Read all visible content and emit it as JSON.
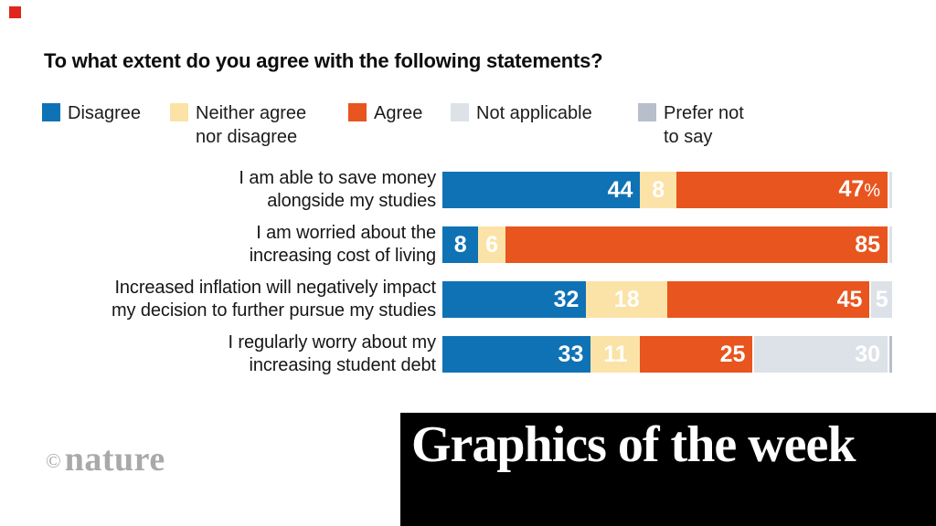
{
  "brand": {
    "red_square_color": "#e0251c"
  },
  "header": {
    "title": "To what extent do you agree with the following statements?"
  },
  "legend": {
    "items": [
      {
        "key": "disagree",
        "label": "Disagree",
        "color": "#0F72B5"
      },
      {
        "key": "neither",
        "label": "Neither agree\nnor disagree",
        "color": "#FBE3A7"
      },
      {
        "key": "agree",
        "label": "Agree",
        "color": "#E8551E"
      },
      {
        "key": "not-applicable",
        "label": "Not applicable",
        "color": "#DDE2E8"
      },
      {
        "key": "prefer-not-to-say",
        "label": "Prefer not\nto say",
        "color": "#B6BFCA"
      }
    ]
  },
  "chart_data": {
    "type": "bar",
    "orientation": "horizontal",
    "stacked": true,
    "unit": "percent",
    "xlim": [
      0,
      100
    ],
    "grid": false,
    "legend_position": "top",
    "title": "To what extent do you agree with the following statements?",
    "categories": [
      "I am able to save money alongside my studies",
      "I am worried about the increasing cost of living",
      "Increased inflation will negatively impact my decision to further pursue my studies",
      "I regularly worry about my increasing student debt"
    ],
    "series": [
      {
        "key": "disagree",
        "name": "Disagree",
        "values": [
          44,
          8,
          32,
          33
        ]
      },
      {
        "key": "neither",
        "name": "Neither agree nor disagree",
        "values": [
          8,
          6,
          18,
          11
        ]
      },
      {
        "key": "agree",
        "name": "Agree",
        "values": [
          47,
          85,
          45,
          25
        ]
      },
      {
        "key": "not-applicable",
        "name": "Not applicable",
        "values": [
          1,
          1,
          5,
          30
        ]
      },
      {
        "key": "prefer-not-to-say",
        "name": "Prefer not to say",
        "values": [
          0,
          0,
          0,
          1
        ]
      }
    ],
    "colors": {
      "disagree": "#0F72B5",
      "neither": "#FBE3A7",
      "agree": "#E8551E",
      "not-applicable": "#DDE2E8",
      "prefer-not-to-say": "#B6BFCA"
    },
    "rows": [
      {
        "label_lines": [
          "I am able to save money",
          "alongside my studies"
        ],
        "segments": [
          {
            "series": "disagree",
            "value": 44,
            "text": "44"
          },
          {
            "series": "neither",
            "value": 8,
            "text": "8"
          },
          {
            "series": "agree",
            "value": 47,
            "text": "47%"
          },
          {
            "series": "not-applicable",
            "value": 1,
            "text": ""
          }
        ]
      },
      {
        "label_lines": [
          "I am worried about the",
          "increasing cost of living"
        ],
        "segments": [
          {
            "series": "disagree",
            "value": 8,
            "text": "8"
          },
          {
            "series": "neither",
            "value": 6,
            "text": "6"
          },
          {
            "series": "agree",
            "value": 85,
            "text": "85"
          },
          {
            "series": "not-applicable",
            "value": 1,
            "text": ""
          }
        ]
      },
      {
        "label_lines": [
          "Increased inflation will negatively impact",
          "my decision to further pursue my studies"
        ],
        "segments": [
          {
            "series": "disagree",
            "value": 32,
            "text": "32"
          },
          {
            "series": "neither",
            "value": 18,
            "text": "18"
          },
          {
            "series": "agree",
            "value": 45,
            "text": "45"
          },
          {
            "series": "not-applicable",
            "value": 5,
            "text": "5"
          }
        ]
      },
      {
        "label_lines": [
          "I regularly worry about my",
          "increasing student debt"
        ],
        "segments": [
          {
            "series": "disagree",
            "value": 33,
            "text": "33"
          },
          {
            "series": "neither",
            "value": 11,
            "text": "11"
          },
          {
            "series": "agree",
            "value": 25,
            "text": "25"
          },
          {
            "series": "not-applicable",
            "value": 30,
            "text": "30"
          },
          {
            "series": "prefer-not-to-say",
            "value": 1,
            "text": ""
          }
        ]
      }
    ]
  },
  "footer": {
    "copyright_symbol": "©",
    "nature_logo_text": "nature",
    "banner_text": "Graphics of the week"
  }
}
